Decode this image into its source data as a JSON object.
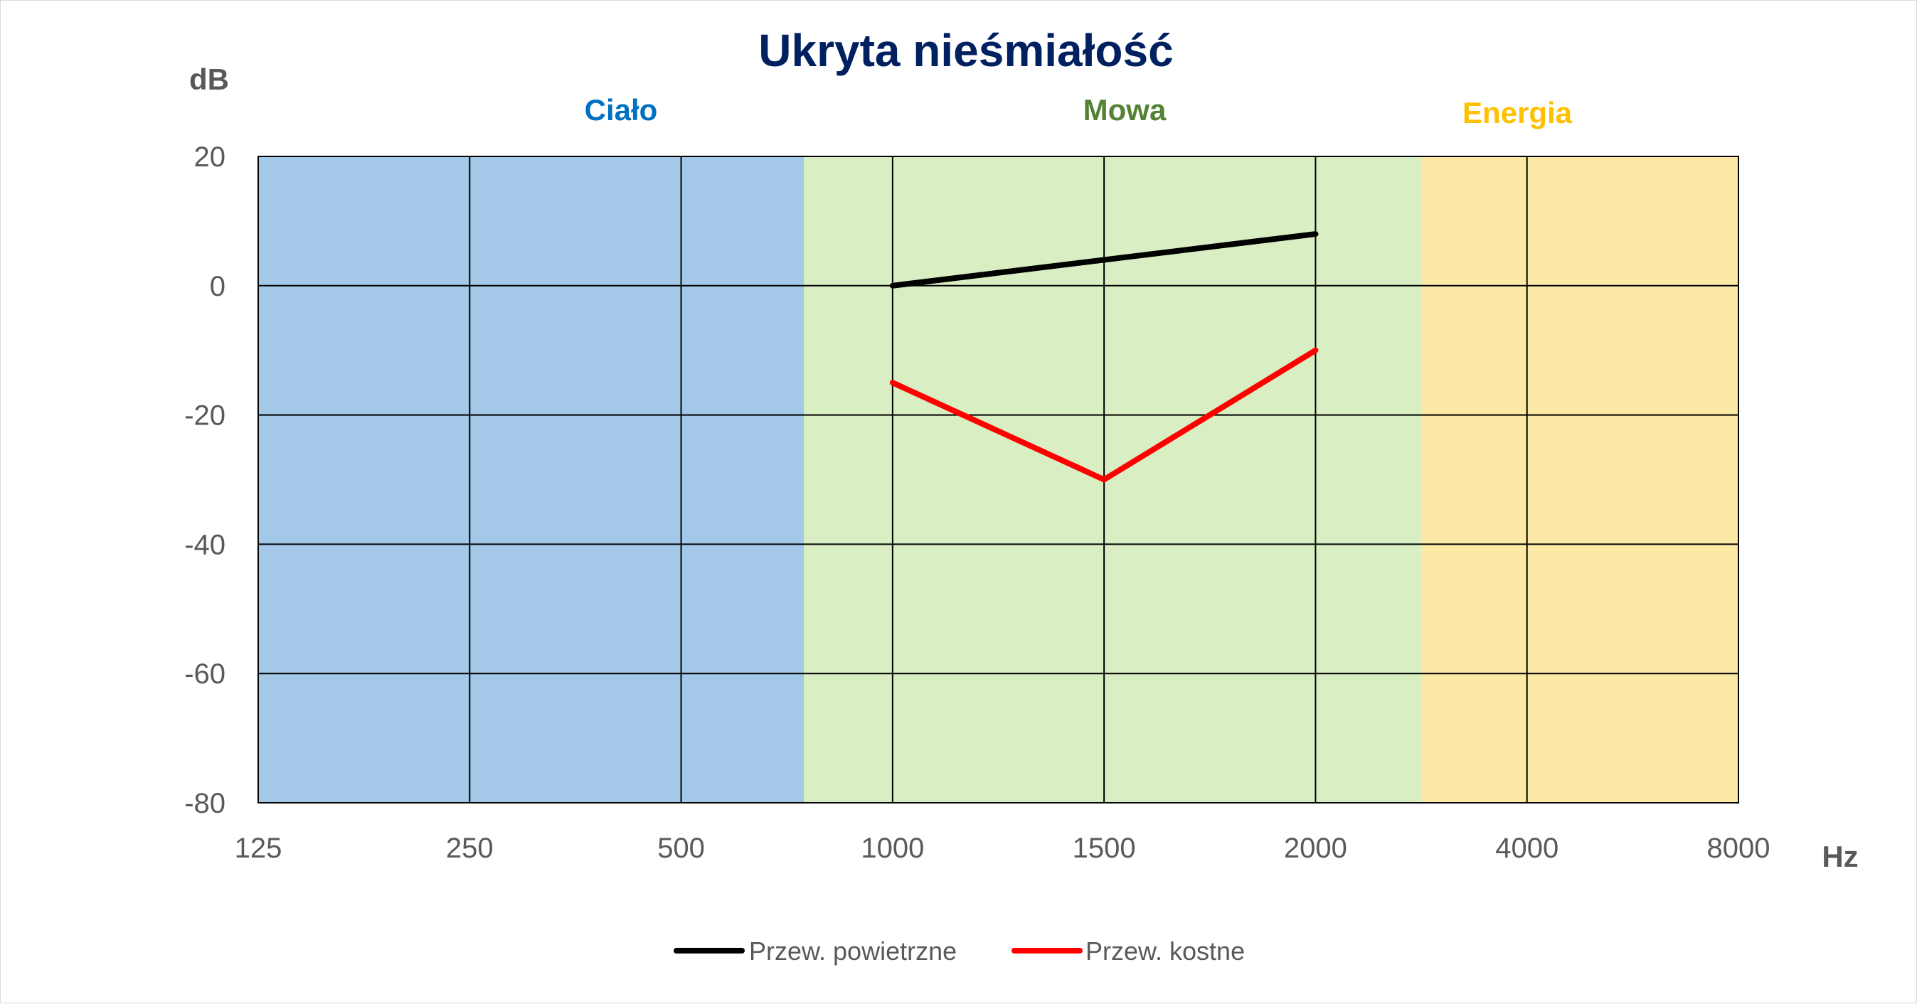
{
  "chart_data": {
    "type": "line",
    "title": "Ukryta nieśmiałość",
    "ylabel": "dB",
    "xlabel": "Hz",
    "x_categories": [
      "125",
      "250",
      "500",
      "1000",
      "1500",
      "2000",
      "4000",
      "8000"
    ],
    "yticks": [
      20,
      0,
      -20,
      -40,
      -60,
      -80
    ],
    "ylim": [
      -80,
      20
    ],
    "grid": true,
    "legend_position": "bottom",
    "bands": [
      {
        "label": "Ciało",
        "color": "#a3c8e8",
        "label_color": "#0070c0",
        "from": "125",
        "to": "between 500 and 1000"
      },
      {
        "label": "Mowa",
        "color": "#d9efc3",
        "label_color": "#548235",
        "from": "between 500 and 1000",
        "to": "between 2000 and 4000"
      },
      {
        "label": "Energia",
        "color": "#fde9a6",
        "label_color": "#ffc000",
        "from": "between 2000 and 4000",
        "to": "8000"
      }
    ],
    "series": [
      {
        "name": "Przew. powietrzne",
        "color": "#000000",
        "x": [
          "1000",
          "1500",
          "2000"
        ],
        "values": [
          0,
          4,
          8
        ]
      },
      {
        "name": "Przew. kostne",
        "color": "#ff0000",
        "x": [
          "1000",
          "1500",
          "2000"
        ],
        "values": [
          -15,
          -30,
          -10
        ]
      }
    ]
  }
}
